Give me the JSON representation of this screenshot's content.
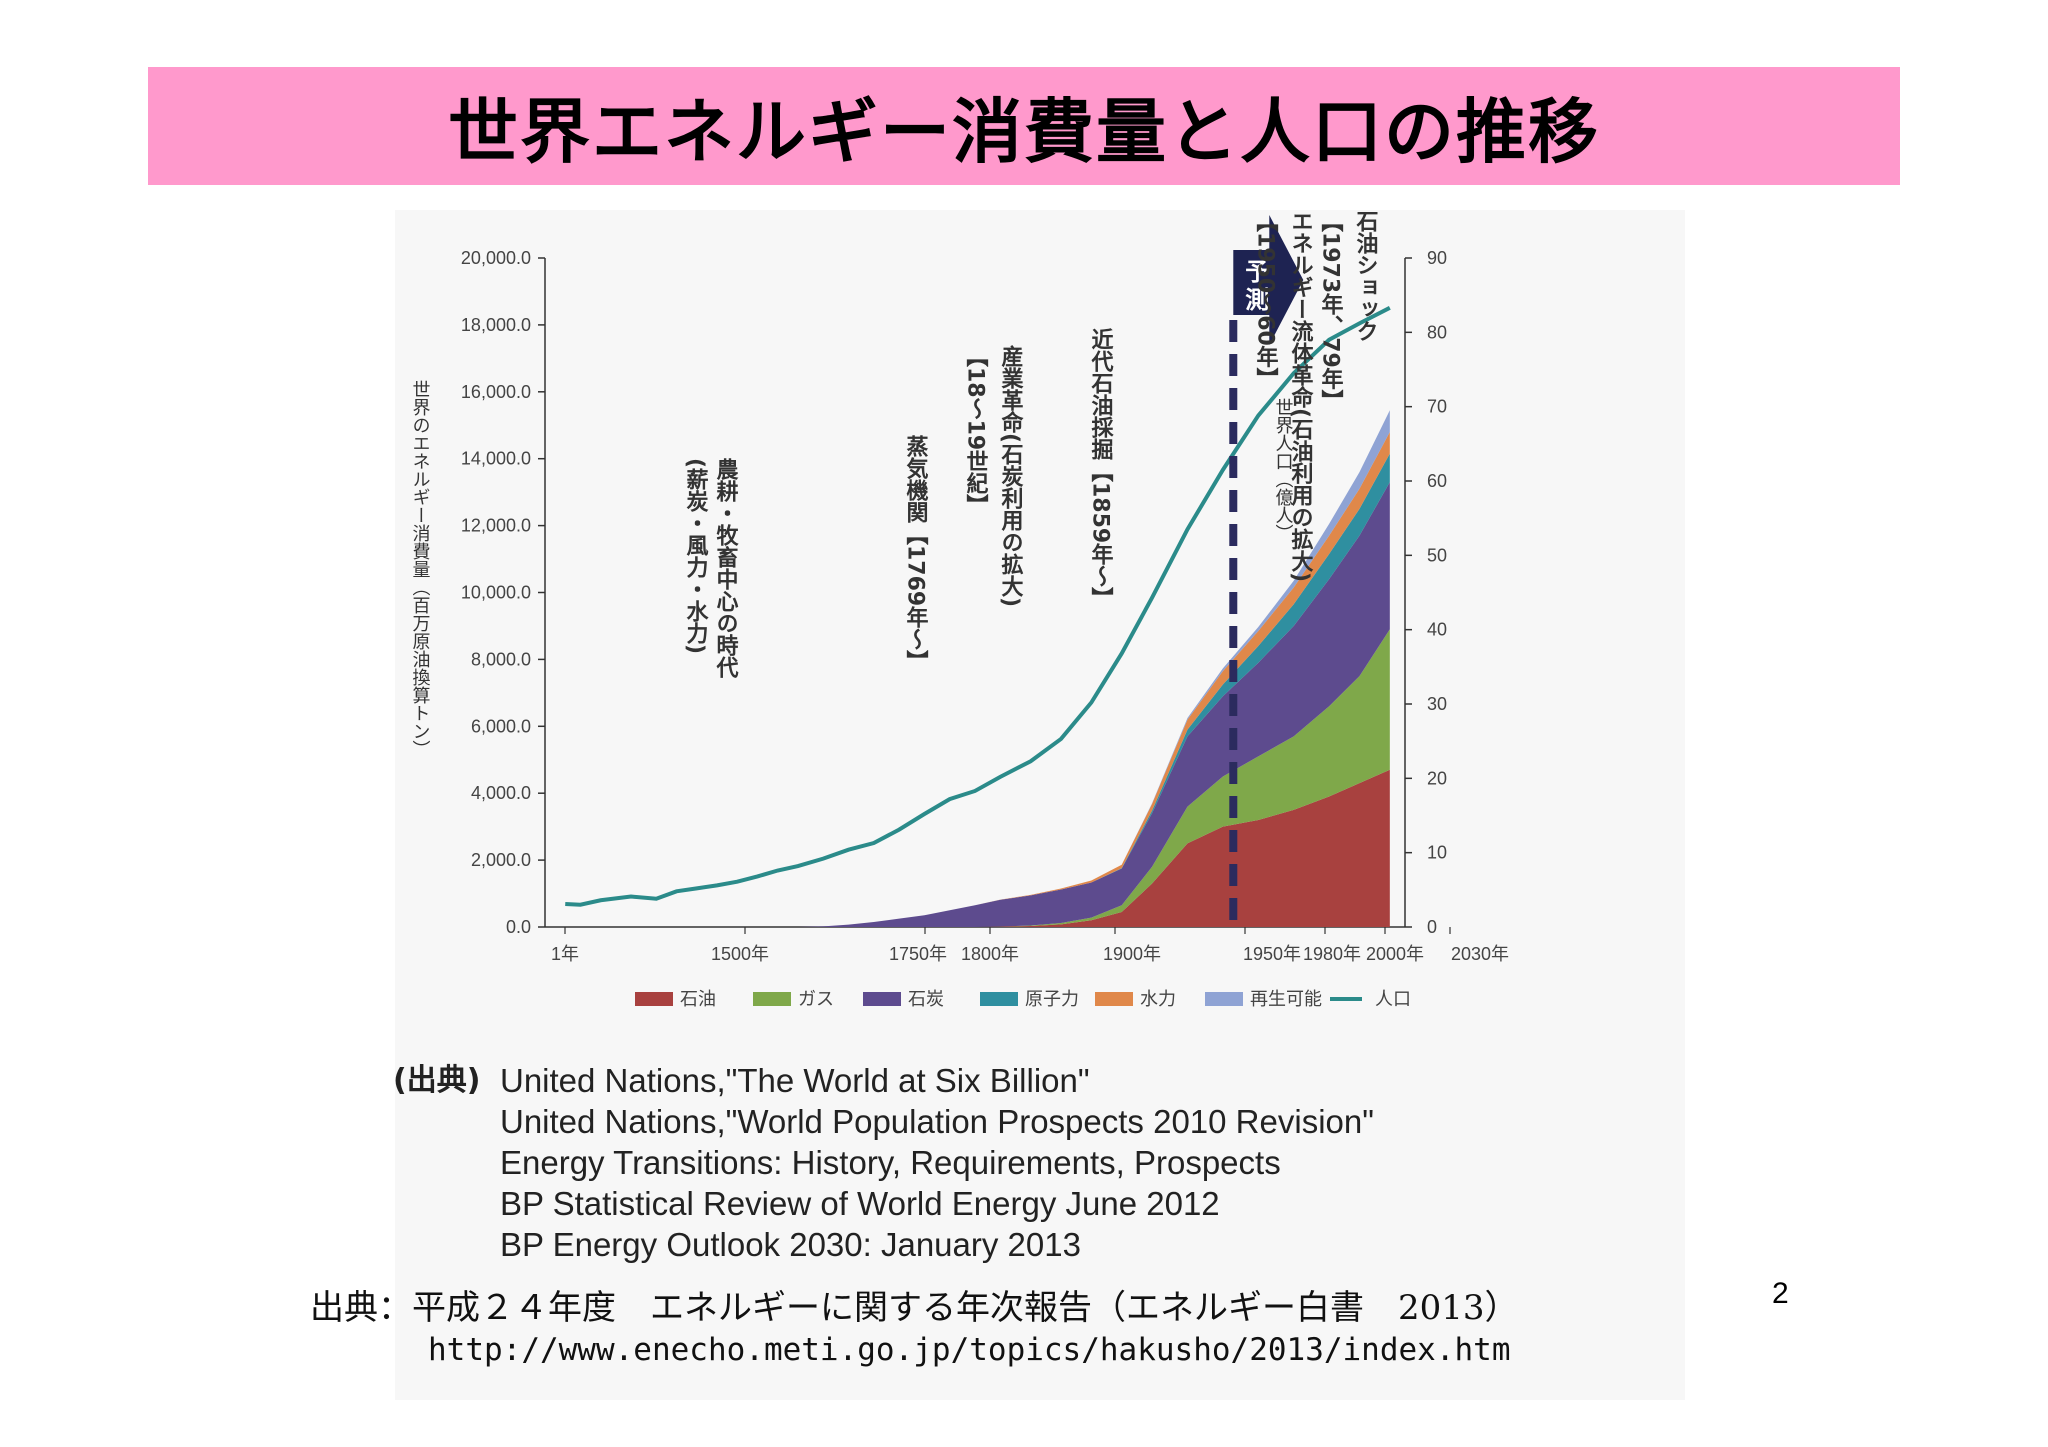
{
  "slide": {
    "title": "世界エネルギー消費量と人口の推移",
    "page_number": "2",
    "sources_label": "(出典)",
    "sources": [
      "United Nations,\"The World at Six Billion\"",
      "United Nations,\"World Population Prospects 2010 Revision\"",
      "Energy Transitions: History, Requirements, Prospects",
      "BP Statistical Review of World Energy June 2012",
      "BP Energy Outlook 2030: January 2013"
    ],
    "citation": "出典：平成２４年度　エネルギーに関する年次報告（エネルギー白書　2013）",
    "url": "http://www.enecho.meti.go.jp/topics/hakusho/2013/index.htm"
  },
  "chart_data": {
    "type": "area",
    "title": "",
    "ylabel": "世界のエネルギー消費量（百万原油換算トン）",
    "y2label": "世界人口（億人）",
    "ylim": [
      0,
      20000
    ],
    "y2lim": [
      0,
      90
    ],
    "yticks": [
      "0.0",
      "2,000.0",
      "4,000.0",
      "6,000.0",
      "8,000.0",
      "10,000.0",
      "12,000.0",
      "14,000.0",
      "16,000.0",
      "18,000.0",
      "20,000.0"
    ],
    "y2ticks": [
      "0",
      "10",
      "20",
      "30",
      "40",
      "50",
      "60",
      "70",
      "80",
      "90"
    ],
    "xticks": [
      "1年",
      "1500年",
      "1750年",
      "1800年",
      "1900年",
      "1950年",
      "1980年",
      "2000年",
      "2030年"
    ],
    "x_index": [
      0,
      1,
      2,
      3,
      4,
      5,
      6,
      7,
      8,
      9,
      10,
      11,
      12,
      13,
      14,
      15,
      16,
      17,
      18,
      19,
      20,
      21,
      22,
      23,
      24,
      25,
      26,
      27,
      28,
      29,
      30,
      31
    ],
    "series": [
      {
        "name": "石油",
        "color": "#a8413f",
        "values": [
          0,
          0,
          0,
          0,
          0,
          0,
          0,
          0,
          0,
          0,
          0,
          0,
          0,
          0,
          0,
          0,
          0,
          0,
          0,
          10,
          30,
          80,
          200,
          450,
          1300,
          2500,
          3000,
          3200,
          3500,
          3900,
          4300,
          4700
        ]
      },
      {
        "name": "ガス",
        "color": "#7fa84a",
        "values": [
          0,
          0,
          0,
          0,
          0,
          0,
          0,
          0,
          0,
          0,
          0,
          0,
          0,
          0,
          0,
          0,
          0,
          0,
          0,
          5,
          15,
          40,
          80,
          200,
          500,
          1100,
          1500,
          1900,
          2200,
          2700,
          3200,
          4200
        ]
      },
      {
        "name": "石炭",
        "color": "#5d4b8e",
        "values": [
          0,
          0,
          0,
          0,
          0,
          0,
          0,
          0,
          0,
          0,
          0,
          0,
          20,
          70,
          150,
          250,
          350,
          500,
          650,
          800,
          900,
          1000,
          1050,
          1100,
          1600,
          2100,
          2400,
          2800,
          3300,
          3800,
          4200,
          4400
        ]
      },
      {
        "name": "原子力",
        "color": "#2f8fa0",
        "values": [
          0,
          0,
          0,
          0,
          0,
          0,
          0,
          0,
          0,
          0,
          0,
          0,
          0,
          0,
          0,
          0,
          0,
          0,
          0,
          0,
          0,
          0,
          0,
          10,
          80,
          200,
          350,
          500,
          650,
          750,
          800,
          850
        ]
      },
      {
        "name": "水力",
        "color": "#e0884a",
        "values": [
          0,
          0,
          0,
          0,
          0,
          0,
          0,
          0,
          0,
          0,
          0,
          0,
          0,
          0,
          0,
          0,
          0,
          0,
          0,
          5,
          15,
          30,
          60,
          100,
          200,
          300,
          400,
          450,
          500,
          550,
          600,
          650
        ]
      },
      {
        "name": "再生可能",
        "color": "#8fa3d4",
        "values": [
          0,
          0,
          0,
          0,
          0,
          0,
          0,
          0,
          0,
          0,
          0,
          0,
          0,
          0,
          0,
          0,
          0,
          0,
          0,
          0,
          0,
          0,
          0,
          0,
          20,
          50,
          80,
          120,
          200,
          350,
          500,
          650
        ]
      }
    ],
    "population": {
      "name": "人口",
      "color": "#2b8b8a",
      "values": [
        3.1,
        3.0,
        3.6,
        4.1,
        3.8,
        4.8,
        5.2,
        5.6,
        6.1,
        6.8,
        7.6,
        8.2,
        9.2,
        10.4,
        11.3,
        13.1,
        15.2,
        17.2,
        18.3,
        20.2,
        22.3,
        25.3,
        30.2,
        36.8,
        44.3,
        53.5,
        61.5,
        68.8,
        74.5,
        79.0,
        81.2,
        83.3
      ]
    },
    "forecast_label": "予測",
    "forecast_start_index": 27,
    "annotations": [
      "農耕・牧畜中心の時代",
      "(薪炭・風力・水力)",
      "蒸気機関【1769年〜】",
      "産業革命(石炭利用の拡大)",
      "【18〜19世紀】",
      "近代石油採掘【1859年〜】",
      "エネルギー流体革命(石油利用の拡大)",
      "【1950〜60年】",
      "石油ショック",
      "【1973年、79年】"
    ],
    "legend_position": "bottom",
    "grid": false
  }
}
